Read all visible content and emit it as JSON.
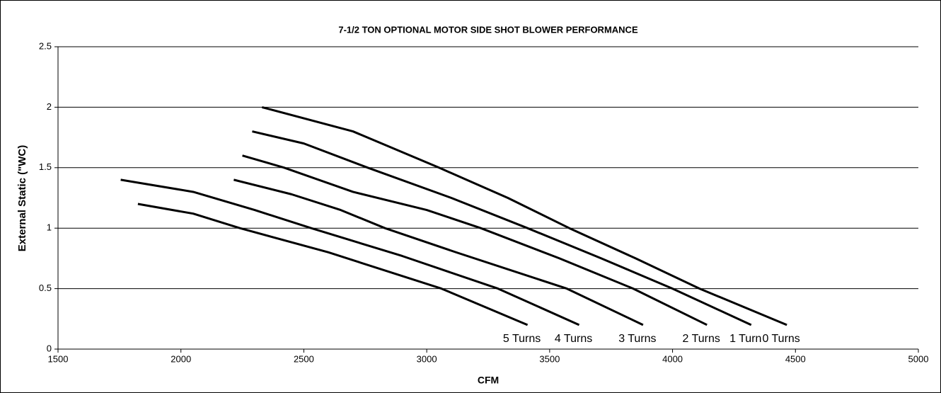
{
  "chart_data": {
    "type": "line",
    "title": "7-1/2 TON OPTIONAL MOTOR SIDE SHOT BLOWER PERFORMANCE",
    "xlabel": "CFM",
    "ylabel": "External Static (\"WC)",
    "xlim": [
      1500,
      5000
    ],
    "xticks": [
      1500,
      2000,
      2500,
      3000,
      3500,
      4000,
      4500,
      5000
    ],
    "ylim": [
      0,
      2.5
    ],
    "yticks": [
      0,
      0.5,
      1,
      1.5,
      2,
      2.5
    ],
    "grid": true,
    "series": [
      {
        "name": "0 Turns",
        "color": "#000000",
        "x": [
          2330,
          2700,
          3050,
          3330,
          3580,
          3850,
          4110,
          4465
        ],
        "values": [
          2.0,
          1.8,
          1.5,
          1.25,
          1.0,
          0.75,
          0.5,
          0.2
        ]
      },
      {
        "name": "1 Turn",
        "color": "#000000",
        "x": [
          2290,
          2500,
          2760,
          3100,
          3410,
          3710,
          4000,
          4320
        ],
        "values": [
          1.8,
          1.7,
          1.5,
          1.25,
          1.0,
          0.75,
          0.5,
          0.2
        ]
      },
      {
        "name": "2 Turns",
        "color": "#000000",
        "x": [
          2250,
          2420,
          2700,
          3000,
          3220,
          3540,
          3840,
          4140
        ],
        "values": [
          1.6,
          1.5,
          1.3,
          1.15,
          1.0,
          0.75,
          0.5,
          0.2
        ]
      },
      {
        "name": "3 Turns",
        "color": "#000000",
        "x": [
          2215,
          2450,
          2650,
          2830,
          3120,
          3570,
          3880
        ],
        "values": [
          1.4,
          1.28,
          1.15,
          1.0,
          0.8,
          0.5,
          0.2
        ]
      },
      {
        "name": "4 Turns",
        "color": "#000000",
        "x": [
          1755,
          2050,
          2300,
          2530,
          2900,
          3290,
          3620
        ],
        "values": [
          1.4,
          1.3,
          1.15,
          1.0,
          0.77,
          0.5,
          0.2
        ]
      },
      {
        "name": "5 Turns",
        "color": "#000000",
        "x": [
          1825,
          2050,
          2240,
          2600,
          3060,
          3410
        ],
        "values": [
          1.2,
          1.12,
          1.0,
          0.8,
          0.5,
          0.2
        ]
      }
    ]
  }
}
